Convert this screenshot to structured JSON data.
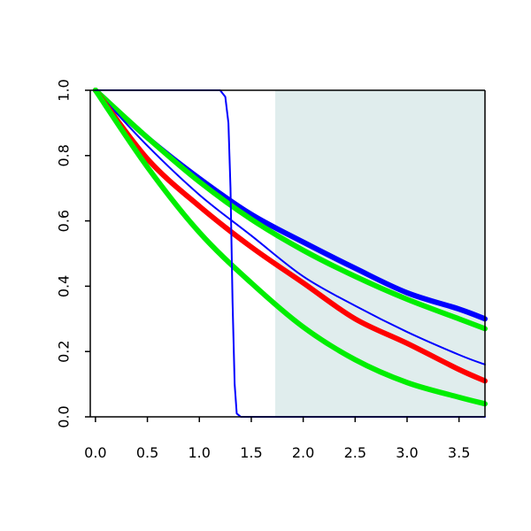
{
  "chart_data": {
    "type": "line",
    "title": "",
    "xlabel": "",
    "ylabel": "",
    "xlim": [
      -0.05,
      3.75
    ],
    "ylim": [
      0,
      1
    ],
    "x_ticks": [
      "0.0",
      "0.5",
      "1.0",
      "1.5",
      "2.0",
      "2.5",
      "3.0",
      "3.5"
    ],
    "y_ticks": [
      "0.0",
      "0.2",
      "0.4",
      "0.6",
      "0.8",
      "1.0"
    ],
    "grid": false,
    "shaded_region": {
      "x_from": 1.73,
      "x_to": 3.75,
      "color": "#e0eded"
    },
    "series": [
      {
        "color": "#0000ff",
        "line_width": "thick",
        "x": [
          0,
          0.5,
          1.0,
          1.5,
          2.0,
          2.5,
          3.0,
          3.5,
          3.75
        ],
        "y": [
          1.0,
          0.855,
          0.73,
          0.62,
          0.535,
          0.455,
          0.38,
          0.33,
          0.3
        ]
      },
      {
        "color": "#00ee00",
        "line_width": "thick",
        "x": [
          0,
          0.5,
          1.0,
          1.5,
          2.0,
          2.5,
          3.0,
          3.5,
          3.75
        ],
        "y": [
          1.0,
          0.855,
          0.72,
          0.605,
          0.51,
          0.43,
          0.36,
          0.3,
          0.27
        ]
      },
      {
        "color": "#0000ff",
        "line_width": "thin",
        "x": [
          0,
          0.5,
          1.0,
          1.5,
          2.0,
          2.5,
          3.0,
          3.5,
          3.75
        ],
        "y": [
          1.0,
          0.83,
          0.68,
          0.555,
          0.43,
          0.34,
          0.26,
          0.19,
          0.16
        ]
      },
      {
        "color": "#ff0000",
        "line_width": "thick",
        "x": [
          0,
          0.5,
          1.0,
          1.5,
          2.0,
          2.5,
          3.0,
          3.5,
          3.75
        ],
        "y": [
          1.0,
          0.79,
          0.645,
          0.52,
          0.41,
          0.3,
          0.225,
          0.145,
          0.11
        ]
      },
      {
        "color": "#00ee00",
        "line_width": "thick",
        "x": [
          0,
          0.5,
          1.0,
          1.5,
          2.0,
          2.5,
          3.0,
          3.5,
          3.75
        ],
        "y": [
          1.0,
          0.765,
          0.565,
          0.41,
          0.275,
          0.175,
          0.105,
          0.06,
          0.04
        ]
      },
      {
        "color": "#0000ff",
        "line_width": "thin",
        "x": [
          0,
          1.0,
          1.2,
          1.25,
          1.28,
          1.3,
          1.32,
          1.34,
          1.36,
          1.4,
          1.5,
          3.75
        ],
        "y": [
          1.0,
          1.0,
          1.0,
          0.98,
          0.9,
          0.7,
          0.35,
          0.1,
          0.01,
          0.0,
          0.0,
          0.0
        ]
      }
    ]
  }
}
